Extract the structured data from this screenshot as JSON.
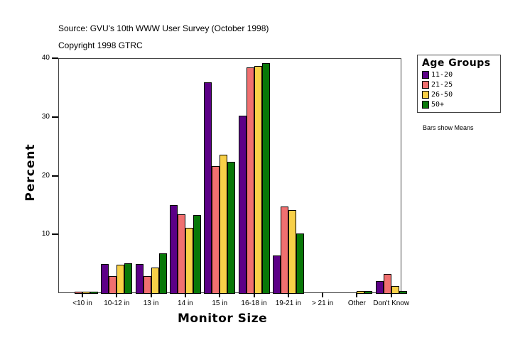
{
  "header": {
    "source": "Source: GVU's 10th WWW User Survey (October 1998)",
    "copyright": "Copyright 1998 GTRC"
  },
  "legend": {
    "title": "Age Groups",
    "items": [
      {
        "label": "11-20",
        "color": "#5c0087"
      },
      {
        "label": "21-25",
        "color": "#f07070"
      },
      {
        "label": "26-50",
        "color": "#f8d048"
      },
      {
        "label": "50+",
        "color": "#087808"
      }
    ]
  },
  "note": "Bars show Means",
  "axes": {
    "ylabel": "Percent",
    "xlabel": "Monitor Size",
    "yticks": [
      "40",
      "30",
      "20",
      "10"
    ]
  },
  "chart_data": {
    "type": "bar",
    "title": "",
    "xlabel": "Monitor Size",
    "ylabel": "Percent",
    "ylim": [
      0,
      40
    ],
    "yticks": [
      10,
      20,
      30,
      40
    ],
    "grid": false,
    "legend_position": "right",
    "legend_title": "Age Groups",
    "categories": [
      "<10 in",
      "10-12 in",
      "13 in",
      "14 in",
      "15 in",
      "16-18 in",
      "19-21 in",
      "> 21 in",
      "Other",
      "Don't Know"
    ],
    "series": [
      {
        "name": "11-20",
        "color": "#5c0087",
        "values": [
          0.0,
          4.9,
          4.9,
          15.0,
          35.9,
          30.2,
          6.4,
          0.0,
          0.0,
          2.1
        ]
      },
      {
        "name": "21-25",
        "color": "#f07070",
        "values": [
          0.3,
          2.9,
          2.9,
          13.4,
          21.6,
          38.4,
          14.7,
          0.0,
          0.0,
          3.3
        ]
      },
      {
        "name": "26-50",
        "color": "#f8d048",
        "values": [
          0.1,
          4.8,
          4.3,
          11.1,
          23.6,
          38.7,
          14.1,
          0.0,
          0.4,
          1.2
        ]
      },
      {
        "name": "50+",
        "color": "#087808",
        "values": [
          0.2,
          5.1,
          6.8,
          13.3,
          22.4,
          39.2,
          10.2,
          0.0,
          0.4,
          0.4
        ]
      }
    ],
    "annotations": [
      "Source: GVU's 10th WWW User Survey (October 1998)",
      "Copyright 1998 GTRC",
      "Bars show Means"
    ]
  }
}
